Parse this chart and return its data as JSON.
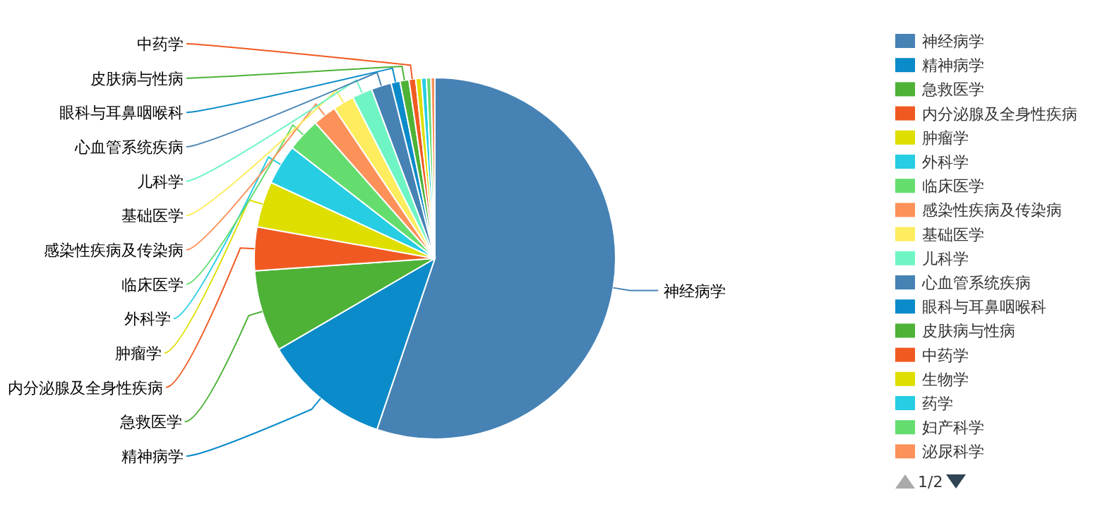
{
  "chart_data": {
    "type": "pie",
    "categories": [
      "神经病学",
      "精神病学",
      "急救医学",
      "内分泌腺及全身性疾病",
      "肿瘤学",
      "外科学",
      "临床医学",
      "感染性疾病及传染病",
      "基础医学",
      "儿科学",
      "心血管系统疾病",
      "眼科与耳鼻咽喉科",
      "皮肤病与性病",
      "中药学",
      "生物学",
      "药学",
      "妇产科学",
      "泌尿科学"
    ],
    "values": [
      55.2,
      11.4,
      7.3,
      3.9,
      4.1,
      3.6,
      3.0,
      2.1,
      1.9,
      1.8,
      1.8,
      0.8,
      0.8,
      0.6,
      0.5,
      0.45,
      0.4,
      0.35
    ],
    "colors": [
      "#4682b4",
      "#0b8bc9",
      "#4db236",
      "#f05a22",
      "#dedf00",
      "#26cde3",
      "#64dd6e",
      "#fd915a",
      "#fdec5e",
      "#6ff5c4",
      "#4682b4",
      "#0b8bc9",
      "#4db236",
      "#f05a22",
      "#dedf00",
      "#26cde3",
      "#64dd6e",
      "#fd915a"
    ],
    "legend": "right",
    "annotations": [
      "1/2"
    ]
  }
}
